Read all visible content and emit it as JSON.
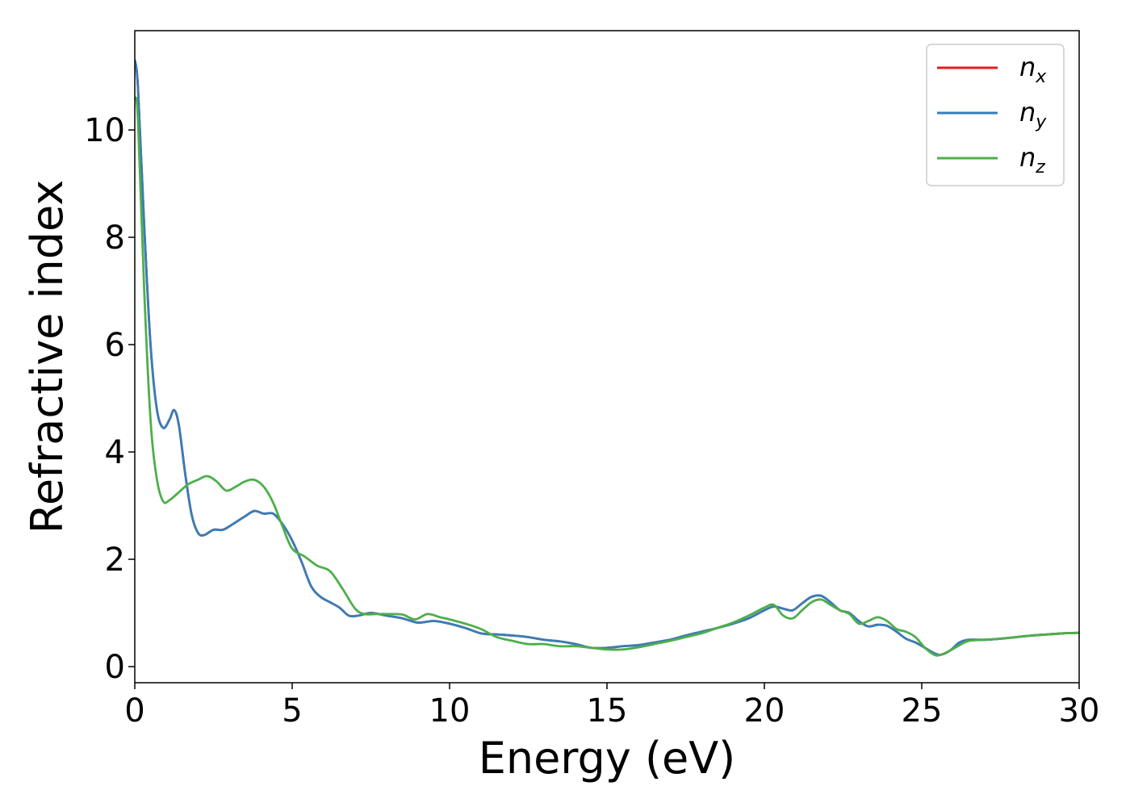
{
  "chart_data": {
    "type": "line",
    "xlabel": "Energy (eV)",
    "ylabel": "Refractive index",
    "xlim": [
      0,
      30
    ],
    "ylim": [
      -0.3,
      11.85
    ],
    "xticks": [
      0,
      5,
      10,
      15,
      20,
      25,
      30
    ],
    "xtick_labels": [
      "0",
      "5",
      "10",
      "15",
      "20",
      "25",
      "30"
    ],
    "yticks": [
      0,
      2,
      4,
      6,
      8,
      10
    ],
    "ytick_labels": [
      "0",
      "2",
      "4",
      "6",
      "8",
      "10"
    ],
    "grid": false,
    "legend_position": "top-right",
    "series": [
      {
        "name": "n_x",
        "label_main": "n",
        "label_sub": "x",
        "color": "#e41a1c",
        "x": [
          0,
          0.1,
          0.3,
          0.5,
          0.7,
          0.9,
          1.1,
          1.25,
          1.4,
          1.6,
          1.8,
          2.0,
          2.2,
          2.5,
          2.8,
          3.1,
          3.5,
          3.8,
          4.1,
          4.4,
          4.7,
          5.0,
          5.3,
          5.6,
          5.9,
          6.2,
          6.5,
          6.8,
          7.1,
          7.5,
          8.0,
          8.5,
          9.0,
          9.5,
          10.0,
          10.5,
          11.0,
          11.5,
          12.0,
          12.5,
          13.0,
          13.5,
          14.0,
          14.5,
          15.0,
          15.5,
          16.0,
          16.5,
          17.0,
          17.5,
          18.0,
          18.5,
          19.0,
          19.5,
          20.0,
          20.3,
          20.6,
          20.9,
          21.2,
          21.5,
          21.8,
          22.1,
          22.4,
          22.7,
          23.0,
          23.3,
          23.6,
          23.9,
          24.2,
          24.5,
          24.8,
          25.1,
          25.4,
          25.6,
          25.9,
          26.2,
          26.5,
          27.0,
          27.5,
          28.0,
          28.5,
          29.0,
          29.5,
          30.0
        ],
        "values": [
          11.3,
          10.8,
          8.2,
          6.0,
          4.8,
          4.45,
          4.6,
          4.78,
          4.5,
          3.6,
          2.85,
          2.5,
          2.45,
          2.55,
          2.55,
          2.65,
          2.8,
          2.9,
          2.85,
          2.85,
          2.65,
          2.35,
          1.95,
          1.5,
          1.3,
          1.2,
          1.1,
          0.95,
          0.95,
          1.0,
          0.95,
          0.9,
          0.82,
          0.85,
          0.8,
          0.72,
          0.62,
          0.6,
          0.58,
          0.55,
          0.5,
          0.47,
          0.42,
          0.35,
          0.35,
          0.38,
          0.4,
          0.45,
          0.5,
          0.58,
          0.65,
          0.72,
          0.8,
          0.9,
          1.05,
          1.12,
          1.08,
          1.05,
          1.18,
          1.3,
          1.32,
          1.2,
          1.05,
          1.0,
          0.85,
          0.75,
          0.78,
          0.76,
          0.65,
          0.52,
          0.45,
          0.35,
          0.25,
          0.22,
          0.3,
          0.45,
          0.5,
          0.5,
          0.52,
          0.55,
          0.58,
          0.6,
          0.62,
          0.63
        ]
      },
      {
        "name": "n_y",
        "label_main": "n",
        "label_sub": "y",
        "color": "#377eb8",
        "x": [
          0,
          0.1,
          0.3,
          0.5,
          0.7,
          0.9,
          1.1,
          1.25,
          1.4,
          1.6,
          1.8,
          2.0,
          2.2,
          2.5,
          2.8,
          3.1,
          3.5,
          3.8,
          4.1,
          4.4,
          4.7,
          5.0,
          5.3,
          5.6,
          5.9,
          6.2,
          6.5,
          6.8,
          7.1,
          7.5,
          8.0,
          8.5,
          9.0,
          9.5,
          10.0,
          10.5,
          11.0,
          11.5,
          12.0,
          12.5,
          13.0,
          13.5,
          14.0,
          14.5,
          15.0,
          15.5,
          16.0,
          16.5,
          17.0,
          17.5,
          18.0,
          18.5,
          19.0,
          19.5,
          20.0,
          20.3,
          20.6,
          20.9,
          21.2,
          21.5,
          21.8,
          22.1,
          22.4,
          22.7,
          23.0,
          23.3,
          23.6,
          23.9,
          24.2,
          24.5,
          24.8,
          25.1,
          25.4,
          25.6,
          25.9,
          26.2,
          26.5,
          27.0,
          27.5,
          28.0,
          28.5,
          29.0,
          29.5,
          30.0
        ],
        "values": [
          11.3,
          10.8,
          8.2,
          6.0,
          4.8,
          4.45,
          4.6,
          4.78,
          4.5,
          3.6,
          2.85,
          2.5,
          2.45,
          2.55,
          2.55,
          2.65,
          2.8,
          2.9,
          2.85,
          2.85,
          2.65,
          2.35,
          1.95,
          1.5,
          1.3,
          1.2,
          1.1,
          0.95,
          0.95,
          1.0,
          0.95,
          0.9,
          0.82,
          0.85,
          0.8,
          0.72,
          0.62,
          0.6,
          0.58,
          0.55,
          0.5,
          0.47,
          0.42,
          0.35,
          0.35,
          0.38,
          0.4,
          0.45,
          0.5,
          0.58,
          0.65,
          0.72,
          0.8,
          0.9,
          1.05,
          1.12,
          1.08,
          1.05,
          1.18,
          1.3,
          1.32,
          1.2,
          1.05,
          1.0,
          0.85,
          0.75,
          0.78,
          0.76,
          0.65,
          0.52,
          0.45,
          0.35,
          0.25,
          0.22,
          0.3,
          0.45,
          0.5,
          0.5,
          0.52,
          0.55,
          0.58,
          0.6,
          0.62,
          0.63
        ]
      },
      {
        "name": "n_z",
        "label_main": "n",
        "label_sub": "z",
        "color": "#4daf4a",
        "x": [
          0,
          0.1,
          0.3,
          0.5,
          0.7,
          0.9,
          1.1,
          1.4,
          1.7,
          2.0,
          2.3,
          2.6,
          2.9,
          3.2,
          3.5,
          3.8,
          4.1,
          4.4,
          4.7,
          5.0,
          5.4,
          5.8,
          6.2,
          6.6,
          7.0,
          7.3,
          7.7,
          8.0,
          8.5,
          8.9,
          9.3,
          9.7,
          10.0,
          10.5,
          11.0,
          11.5,
          12.0,
          12.5,
          13.0,
          13.5,
          14.0,
          14.5,
          15.0,
          15.5,
          16.0,
          16.5,
          17.0,
          17.5,
          18.0,
          18.5,
          19.0,
          19.5,
          20.0,
          20.3,
          20.6,
          20.9,
          21.2,
          21.5,
          21.8,
          22.1,
          22.4,
          22.7,
          23.0,
          23.3,
          23.6,
          23.9,
          24.2,
          24.5,
          24.8,
          25.1,
          25.4,
          25.6,
          25.9,
          26.2,
          26.5,
          27.0,
          27.5,
          28.0,
          28.5,
          29.0,
          29.5,
          30.0
        ],
        "values": [
          10.6,
          10.2,
          7.0,
          4.6,
          3.5,
          3.08,
          3.1,
          3.25,
          3.4,
          3.48,
          3.55,
          3.45,
          3.28,
          3.35,
          3.45,
          3.48,
          3.35,
          3.05,
          2.6,
          2.2,
          2.05,
          1.88,
          1.78,
          1.45,
          1.08,
          0.98,
          0.98,
          0.98,
          0.97,
          0.88,
          0.98,
          0.92,
          0.88,
          0.8,
          0.7,
          0.55,
          0.48,
          0.42,
          0.42,
          0.38,
          0.38,
          0.35,
          0.32,
          0.32,
          0.36,
          0.42,
          0.48,
          0.55,
          0.62,
          0.72,
          0.82,
          0.95,
          1.1,
          1.15,
          0.95,
          0.9,
          1.05,
          1.2,
          1.25,
          1.15,
          1.05,
          0.98,
          0.8,
          0.85,
          0.92,
          0.85,
          0.7,
          0.65,
          0.55,
          0.35,
          0.22,
          0.22,
          0.3,
          0.4,
          0.48,
          0.5,
          0.52,
          0.55,
          0.58,
          0.6,
          0.62,
          0.63
        ]
      }
    ]
  }
}
